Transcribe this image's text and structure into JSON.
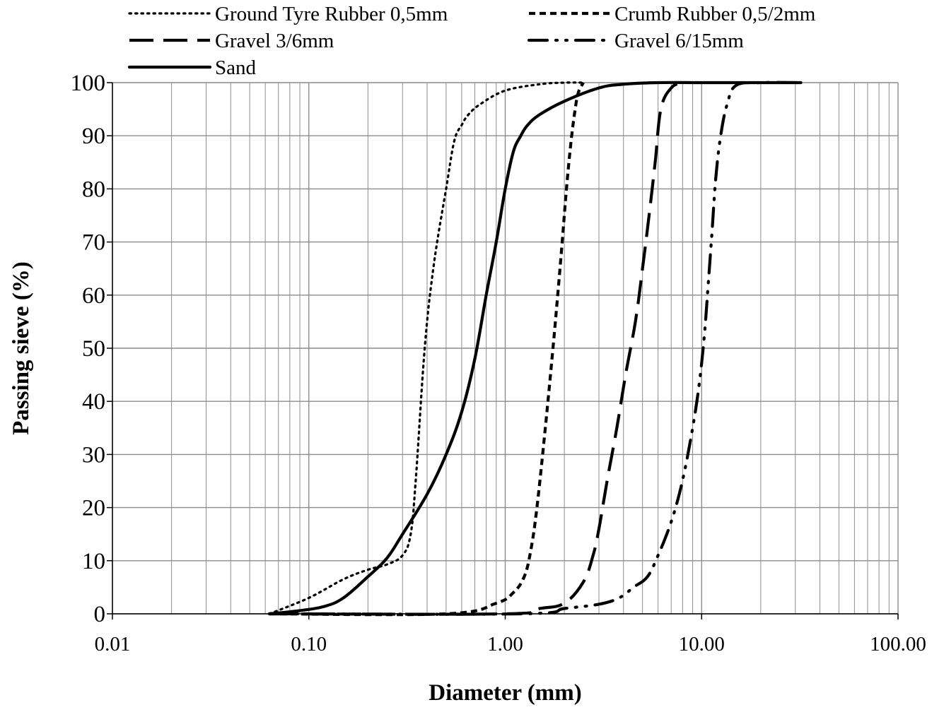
{
  "chart_data": {
    "type": "line",
    "title": "",
    "xlabel": "Diameter (mm)",
    "ylabel": "Passing sieve (%)",
    "xscale": "log",
    "xlim": [
      0.01,
      100
    ],
    "ylim": [
      0,
      100
    ],
    "grid": true,
    "legend_position": "top",
    "x_tick_values": [
      0.01,
      0.1,
      1,
      10,
      100
    ],
    "x_tick_labels": [
      "0.01",
      "0.10",
      "1.00",
      "10.00",
      "100.00"
    ],
    "y_tick_values": [
      0,
      10,
      20,
      30,
      40,
      50,
      60,
      70,
      80,
      90,
      100
    ],
    "y_tick_labels": [
      "0",
      "10",
      "20",
      "30",
      "40",
      "50",
      "60",
      "70",
      "80",
      "90",
      "100"
    ],
    "series": [
      {
        "name": "Ground Tyre Rubber 0,5mm",
        "line_style": "dotted",
        "x": [
          0.063,
          0.1,
          0.15,
          0.2,
          0.25,
          0.3,
          0.33,
          0.35,
          0.38,
          0.4,
          0.42,
          0.45,
          0.5,
          0.55,
          0.6,
          0.65,
          0.75,
          1.0,
          1.5,
          2.0,
          2.5
        ],
        "y": [
          0,
          3,
          6.5,
          8.3,
          9.3,
          11,
          15,
          25,
          45,
          55,
          62,
          70,
          80,
          89,
          92,
          94,
          96,
          98.5,
          99.7,
          100,
          100
        ]
      },
      {
        "name": "Crumb Rubber 0,5/2mm",
        "line_style": "short-dash",
        "x": [
          0.063,
          0.5,
          0.9,
          1.1,
          1.25,
          1.35,
          1.45,
          1.6,
          1.75,
          1.85,
          1.95,
          2.05,
          2.15,
          2.25,
          2.35,
          2.5
        ],
        "y": [
          0,
          0,
          2,
          4,
          7,
          12,
          20,
          35,
          50,
          60,
          70,
          80,
          88,
          94,
          98,
          100
        ]
      },
      {
        "name": "Gravel 3/6mm",
        "line_style": "long-dash",
        "x": [
          0.063,
          1.0,
          1.5,
          2.0,
          2.5,
          2.8,
          3.0,
          3.3,
          3.7,
          4.1,
          4.6,
          5.0,
          5.4,
          5.8,
          6.2,
          7.0,
          8.0
        ],
        "y": [
          0,
          0,
          1,
          2,
          6,
          11,
          16,
          25,
          35,
          45,
          55,
          65,
          75,
          85,
          95,
          99,
          100
        ]
      },
      {
        "name": "Gravel 6/15mm",
        "line_style": "dash-dot-dot",
        "x": [
          0.063,
          1.2,
          2.0,
          3.0,
          3.8,
          4.5,
          5.3,
          6.0,
          6.8,
          7.5,
          8.2,
          9.0,
          9.7,
          10.3,
          10.8,
          11.3,
          11.8,
          12.5,
          13.5,
          15.0,
          20.0,
          32.0
        ],
        "y": [
          0,
          0,
          1,
          1.8,
          3,
          5,
          7,
          11,
          16,
          21,
          27,
          35,
          43,
          52,
          62,
          72,
          82,
          90,
          96,
          99.5,
          100,
          100
        ]
      },
      {
        "name": "Sand",
        "line_style": "solid",
        "x": [
          0.063,
          0.09,
          0.12,
          0.15,
          0.2,
          0.25,
          0.3,
          0.4,
          0.5,
          0.6,
          0.7,
          0.8,
          0.9,
          1.0,
          1.1,
          1.2,
          1.3,
          1.5,
          2.0,
          3.0,
          4.0,
          6.0,
          10.0,
          20.0,
          32.0
        ],
        "y": [
          0,
          0.6,
          1.4,
          3,
          7,
          10.5,
          15,
          22.5,
          30,
          38,
          48,
          60,
          70,
          80,
          87,
          90,
          92,
          94,
          96.5,
          99,
          99.7,
          100,
          100,
          100,
          100
        ]
      }
    ]
  }
}
